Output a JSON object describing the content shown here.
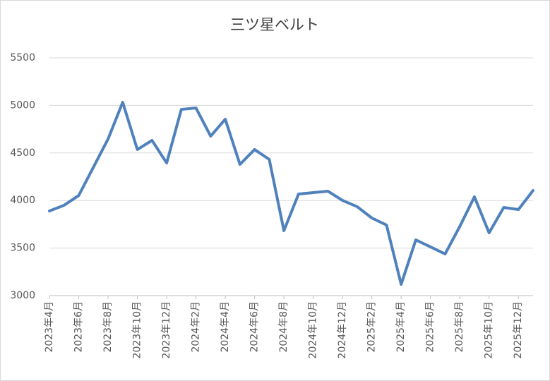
{
  "chart_data": {
    "type": "line",
    "title": "三ツ星ベルト",
    "categories": [
      "2023年4月",
      null,
      "2023年6月",
      null,
      "2023年8月",
      null,
      "2023年10月",
      null,
      "2023年12月",
      null,
      "2024年2月",
      null,
      "2024年4月",
      null,
      "2024年6月",
      null,
      "2024年8月",
      null,
      "2024年10月",
      null,
      "2024年12月",
      null,
      "2025年2月",
      null,
      "2025年4月",
      null,
      "2025年6月",
      null,
      "2025年8月",
      null,
      "2025年10月",
      null,
      "2025年12月",
      null
    ],
    "series": [
      {
        "name": "三ツ星ベルト",
        "color": "#4f81bd",
        "values": [
          3890,
          3950,
          4053,
          4350,
          4647,
          5033,
          4536,
          4632,
          4395,
          4958,
          4973,
          4677,
          4855,
          4380,
          4536,
          4432,
          3683,
          4068,
          4083,
          4098,
          4001,
          3935,
          3816,
          3742,
          3119,
          3586,
          3512,
          3438,
          3727,
          4039,
          3660,
          3927,
          3905,
          4105
        ]
      }
    ],
    "ylim": [
      3000,
      5500
    ],
    "yticks": [
      3000,
      3500,
      4000,
      4500,
      5000,
      5500
    ],
    "grid": true
  }
}
